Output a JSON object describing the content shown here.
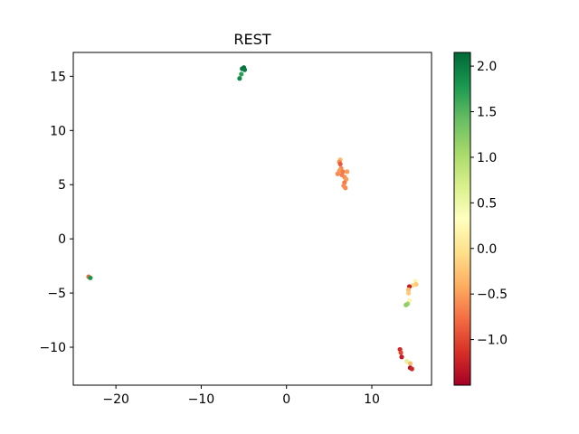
{
  "chart_data": {
    "type": "scatter",
    "title": "REST",
    "xlabel": "",
    "ylabel": "",
    "xlim": [
      -25,
      17
    ],
    "ylim": [
      -13.5,
      17.2
    ],
    "xticks": [
      -20,
      -10,
      0,
      10
    ],
    "xtick_labels": [
      "−20",
      "−10",
      "0",
      "10"
    ],
    "yticks": [
      -10,
      -5,
      0,
      5,
      10,
      15
    ],
    "ytick_labels": [
      "−10",
      "−5",
      "0",
      "5",
      "10",
      "15"
    ],
    "grid": false,
    "colormap": "RdYlGn",
    "colorbar": {
      "range": [
        -1.5,
        2.15
      ],
      "ticks": [
        -1.0,
        -0.5,
        0.0,
        0.5,
        1.0,
        1.5,
        2.0
      ],
      "tick_labels": [
        "−1.0",
        "−0.5",
        "0.0",
        "0.5",
        "1.0",
        "1.5",
        "2.0"
      ]
    },
    "points": [
      {
        "x": -5.0,
        "y": 15.8,
        "c": 2.1
      },
      {
        "x": -5.2,
        "y": 15.7,
        "c": 2.05
      },
      {
        "x": -4.9,
        "y": 15.6,
        "c": 2.0
      },
      {
        "x": -5.3,
        "y": 15.2,
        "c": 1.7
      },
      {
        "x": -5.5,
        "y": 14.8,
        "c": 1.9
      },
      {
        "x": 6.3,
        "y": 7.3,
        "c": -0.3
      },
      {
        "x": 6.2,
        "y": 7.1,
        "c": -0.6
      },
      {
        "x": 6.3,
        "y": 6.9,
        "c": -0.9
      },
      {
        "x": 6.4,
        "y": 6.5,
        "c": -0.6
      },
      {
        "x": 6.2,
        "y": 6.3,
        "c": -0.5
      },
      {
        "x": 6.6,
        "y": 6.2,
        "c": -0.7
      },
      {
        "x": 7.1,
        "y": 6.2,
        "c": -0.5
      },
      {
        "x": 6.0,
        "y": 6.0,
        "c": -0.6
      },
      {
        "x": 6.5,
        "y": 5.9,
        "c": -0.7
      },
      {
        "x": 6.8,
        "y": 5.7,
        "c": -0.6
      },
      {
        "x": 7.0,
        "y": 5.5,
        "c": -0.5
      },
      {
        "x": 6.8,
        "y": 5.2,
        "c": -0.7
      },
      {
        "x": 6.7,
        "y": 4.9,
        "c": -0.6
      },
      {
        "x": 6.9,
        "y": 4.7,
        "c": -0.6
      },
      {
        "x": -23.2,
        "y": -3.5,
        "c": -0.8
      },
      {
        "x": -23.0,
        "y": -3.6,
        "c": 1.8
      },
      {
        "x": 15.1,
        "y": -3.9,
        "c": 0.2
      },
      {
        "x": 15.2,
        "y": -4.2,
        "c": -0.2
      },
      {
        "x": 14.8,
        "y": -4.3,
        "c": -0.1
      },
      {
        "x": 14.4,
        "y": -4.4,
        "c": -1.3
      },
      {
        "x": 14.3,
        "y": -4.7,
        "c": -0.3
      },
      {
        "x": 14.3,
        "y": -5.0,
        "c": -0.2
      },
      {
        "x": 14.4,
        "y": -5.7,
        "c": 0.2
      },
      {
        "x": 14.2,
        "y": -6.0,
        "c": 1.1
      },
      {
        "x": 14.0,
        "y": -6.1,
        "c": 1.2
      },
      {
        "x": 13.3,
        "y": -10.2,
        "c": -1.2
      },
      {
        "x": 13.4,
        "y": -10.5,
        "c": -1.0
      },
      {
        "x": 13.5,
        "y": -10.9,
        "c": -1.3
      },
      {
        "x": 14.1,
        "y": -11.3,
        "c": 0.6
      },
      {
        "x": 14.5,
        "y": -11.5,
        "c": -0.3
      },
      {
        "x": 14.5,
        "y": -11.9,
        "c": -1.4
      },
      {
        "x": 14.7,
        "y": -12.0,
        "c": -1.2
      }
    ]
  }
}
